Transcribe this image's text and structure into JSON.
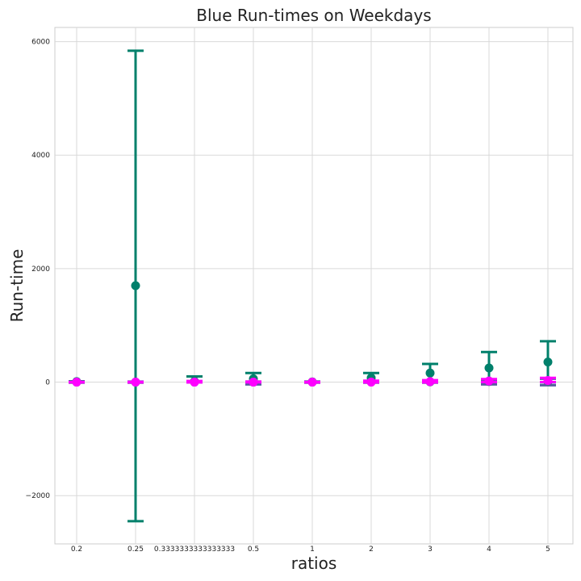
{
  "chart_data": {
    "type": "scatter",
    "title": "Blue Run-times on Weekdays",
    "xlabel": "ratios",
    "ylabel": "Run-time",
    "categories": [
      "0.2",
      "0.25",
      "0.3333333333333333",
      "0.5",
      "1",
      "2",
      "3",
      "4",
      "5"
    ],
    "ylim": [
      -2850,
      6250
    ],
    "yticks": [
      -2000,
      0,
      2000,
      4000,
      6000
    ],
    "yticklabels": [
      "−2000",
      "0",
      "2000",
      "4000",
      "6000"
    ],
    "grid": true,
    "series": [
      {
        "color": "#00806b",
        "values": [
          10,
          1700,
          15,
          60,
          5,
          75,
          160,
          250,
          355
        ],
        "err_low": [
          0,
          -2450,
          0,
          -30,
          0,
          0,
          0,
          -30,
          -50
        ],
        "err_high": [
          15,
          5840,
          100,
          160,
          10,
          160,
          320,
          530,
          720
        ]
      },
      {
        "color": "#5a5aa0",
        "values": [
          0,
          0,
          0,
          0,
          0,
          5,
          5,
          10,
          10
        ],
        "err_low": [
          -10,
          -10,
          -5,
          -40,
          -10,
          -10,
          -10,
          -40,
          -55
        ],
        "err_high": [
          10,
          10,
          10,
          10,
          10,
          20,
          25,
          40,
          60
        ]
      },
      {
        "color": "#ff00ff",
        "values": [
          0,
          0,
          0,
          0,
          0,
          0,
          10,
          20,
          30
        ],
        "err_low": [
          -5,
          -5,
          -5,
          -5,
          -5,
          -5,
          -5,
          0,
          0
        ],
        "err_high": [
          5,
          5,
          20,
          10,
          5,
          25,
          35,
          55,
          75
        ]
      }
    ]
  }
}
